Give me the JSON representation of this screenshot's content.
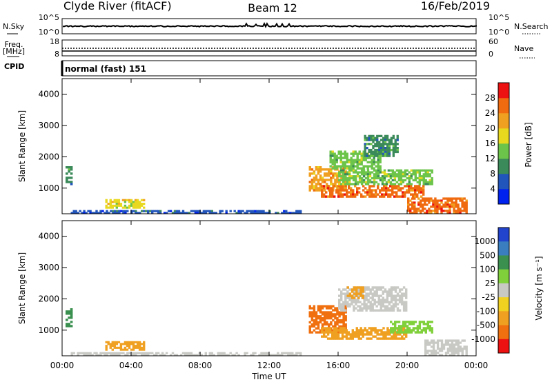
{
  "header": {
    "station": "Clyde River (fitACF)",
    "beam": "Beam 12",
    "date": "16/Feb/2019"
  },
  "status_panels": {
    "nsky_label": "N.Sky",
    "nsearch_label": "N.Search",
    "nsky_ticks": [
      "10^5",
      "10^0"
    ],
    "nsearch_ticks": [
      "10^5",
      "10^0"
    ],
    "freq_label": "Freq.",
    "freq_unit": "[MHz]",
    "freq_ticks": [
      "18",
      "8"
    ],
    "nave_label": "Nave",
    "nave_ticks": [
      "60",
      "0"
    ],
    "cpid_label": "CPID",
    "cpid_text": "normal (fast) 151"
  },
  "colors": {
    "power": [
      "#0022ee",
      "#2255bb",
      "#3b8a5a",
      "#6cc44a",
      "#e8d81e",
      "#f0a020",
      "#f06a10",
      "#ee1111"
    ],
    "velocity": [
      "#2244cc",
      "#3a7ec0",
      "#3b9050",
      "#7fd03a",
      "#c8c8c4",
      "#f0d020",
      "#f0a020",
      "#f07010",
      "#ee1111"
    ]
  },
  "chart_data": [
    {
      "type": "heatmap",
      "name": "power",
      "xlabel": "",
      "ylabel": "Slant Range [km]",
      "x_ticks": [
        "00:00",
        "04:00",
        "08:00",
        "12:00",
        "16:00",
        "20:00",
        "00:00"
      ],
      "x_hours": [
        0,
        4,
        8,
        12,
        16,
        20,
        24
      ],
      "xlim": [
        0,
        24
      ],
      "ylim": [
        180,
        4500
      ],
      "y_ticks": [
        1000,
        2000,
        3000,
        4000
      ],
      "colorbar_label": "Power [dB]",
      "colorbar_ticks": [
        4,
        8,
        12,
        16,
        20,
        24,
        28
      ],
      "colorbar_range": [
        0,
        32
      ],
      "regions": [
        {
          "x": [
            0.2,
            0.6
          ],
          "y": [
            1100,
            1700
          ],
          "value": 10
        },
        {
          "x": [
            2.5,
            4.8
          ],
          "y": [
            350,
            650
          ],
          "value": 18
        },
        {
          "x": [
            0.5,
            14.0
          ],
          "y": [
            180,
            300
          ],
          "value": 6
        },
        {
          "x": [
            14.3,
            16.5
          ],
          "y": [
            900,
            1700
          ],
          "value": 20
        },
        {
          "x": [
            15.0,
            21.0
          ],
          "y": [
            700,
            1100
          ],
          "value": 26
        },
        {
          "x": [
            16.0,
            21.5
          ],
          "y": [
            1100,
            1600
          ],
          "value": 14
        },
        {
          "x": [
            15.5,
            18.5
          ],
          "y": [
            1600,
            2200
          ],
          "value": 12
        },
        {
          "x": [
            17.5,
            19.5
          ],
          "y": [
            2000,
            2700
          ],
          "value": 8
        },
        {
          "x": [
            20.0,
            23.5
          ],
          "y": [
            180,
            700
          ],
          "value": 26
        }
      ]
    },
    {
      "type": "heatmap",
      "name": "velocity",
      "xlabel": "Time UT",
      "ylabel": "Slant Range [km]",
      "x_ticks": [
        "00:00",
        "04:00",
        "08:00",
        "12:00",
        "16:00",
        "20:00",
        "00:00"
      ],
      "x_hours": [
        0,
        4,
        8,
        12,
        16,
        20,
        24
      ],
      "xlim": [
        0,
        24
      ],
      "ylim": [
        180,
        4500
      ],
      "y_ticks": [
        1000,
        2000,
        3000,
        4000
      ],
      "colorbar_label": "Velocity [m s⁻¹]",
      "colorbar_ticks": [
        "1000",
        "500",
        "100",
        "25",
        "-25",
        "-100",
        "-500",
        "-1000"
      ],
      "regions": [
        {
          "x": [
            0.2,
            0.6
          ],
          "y": [
            1100,
            1700
          ],
          "value": "500"
        },
        {
          "x": [
            2.5,
            4.8
          ],
          "y": [
            350,
            650
          ],
          "value": "-100"
        },
        {
          "x": [
            0.5,
            14.0
          ],
          "y": [
            180,
            300
          ],
          "value": "25"
        },
        {
          "x": [
            14.3,
            16.5
          ],
          "y": [
            900,
            1800
          ],
          "value": "-500"
        },
        {
          "x": [
            15.0,
            20.0
          ],
          "y": [
            700,
            1100
          ],
          "value": "-100"
        },
        {
          "x": [
            16.0,
            20.0
          ],
          "y": [
            1600,
            2400
          ],
          "value": "25"
        },
        {
          "x": [
            19.0,
            21.5
          ],
          "y": [
            900,
            1300
          ],
          "value": "100"
        },
        {
          "x": [
            21.0,
            23.5
          ],
          "y": [
            180,
            700
          ],
          "value": "25"
        },
        {
          "x": [
            16.5,
            17.5
          ],
          "y": [
            2000,
            2400
          ],
          "value": "-100"
        }
      ]
    }
  ]
}
